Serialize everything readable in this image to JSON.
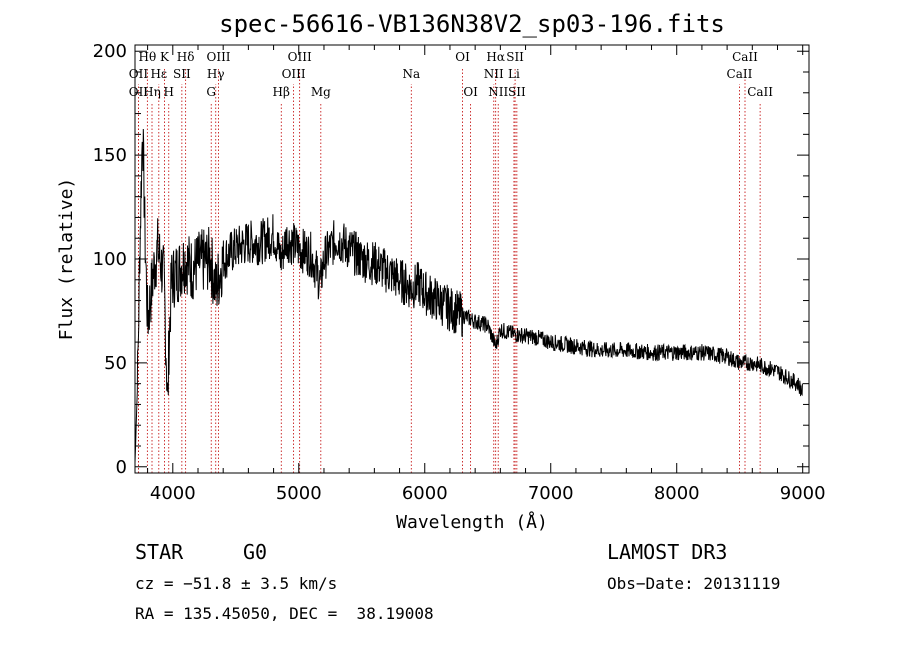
{
  "chart_data": {
    "type": "line",
    "title": "spec-56616-VB136N38V2_sp03-196.fits",
    "xlabel": "Wavelength (Å)",
    "ylabel": "Flux (relative)",
    "xlim": [
      3700,
      9050
    ],
    "ylim": [
      -3,
      203
    ],
    "xticks": [
      4000,
      5000,
      6000,
      7000,
      8000,
      9000
    ],
    "yticks": [
      0,
      50,
      100,
      150,
      200
    ],
    "series": [
      {
        "name": "flux",
        "anchors": [
          [
            3700,
            2
          ],
          [
            3720,
            40
          ],
          [
            3740,
            110
          ],
          [
            3760,
            165
          ],
          [
            3780,
            110
          ],
          [
            3800,
            70
          ],
          [
            3820,
            80
          ],
          [
            3850,
            95
          ],
          [
            3880,
            105
          ],
          [
            3900,
            100
          ],
          [
            3930,
            90
          ],
          [
            3960,
            30
          ],
          [
            3970,
            60
          ],
          [
            3990,
            90
          ],
          [
            4050,
            95
          ],
          [
            4100,
            100
          ],
          [
            4150,
            95
          ],
          [
            4200,
            98
          ],
          [
            4300,
            100
          ],
          [
            4340,
            85
          ],
          [
            4400,
            100
          ],
          [
            4500,
            105
          ],
          [
            4600,
            108
          ],
          [
            4700,
            108
          ],
          [
            4800,
            112
          ],
          [
            4861,
            100
          ],
          [
            4900,
            110
          ],
          [
            5000,
            105
          ],
          [
            5100,
            102
          ],
          [
            5172,
            88
          ],
          [
            5200,
            100
          ],
          [
            5300,
            110
          ],
          [
            5400,
            105
          ],
          [
            5500,
            100
          ],
          [
            5600,
            98
          ],
          [
            5700,
            94
          ],
          [
            5800,
            90
          ],
          [
            5893,
            86
          ],
          [
            5950,
            88
          ],
          [
            6000,
            84
          ],
          [
            6100,
            80
          ],
          [
            6200,
            76
          ],
          [
            6300,
            73
          ],
          [
            6400,
            70
          ],
          [
            6500,
            68
          ],
          [
            6563,
            58
          ],
          [
            6600,
            66
          ],
          [
            6700,
            64
          ],
          [
            6800,
            63
          ],
          [
            6900,
            62
          ],
          [
            7000,
            60
          ],
          [
            7200,
            58
          ],
          [
            7400,
            56
          ],
          [
            7600,
            56
          ],
          [
            7800,
            55
          ],
          [
            8000,
            55
          ],
          [
            8200,
            55
          ],
          [
            8400,
            53
          ],
          [
            8500,
            50
          ],
          [
            8600,
            50
          ],
          [
            8700,
            48
          ],
          [
            8800,
            46
          ],
          [
            8900,
            42
          ],
          [
            8960,
            40
          ],
          [
            9000,
            36
          ]
        ]
      }
    ],
    "lines": [
      {
        "label": "Hθ",
        "x": 3798,
        "row": 1
      },
      {
        "label": "OII",
        "x": 3727,
        "row": 2
      },
      {
        "label": "OII",
        "x": 3727,
        "row": 3
      },
      {
        "label": "K",
        "x": 3934,
        "row": 1
      },
      {
        "label": "Hε",
        "x": 3889,
        "row": 2
      },
      {
        "label": "Hη",
        "x": 3835,
        "row": 3
      },
      {
        "label": "H",
        "x": 3968,
        "row": 3
      },
      {
        "label": "Hδ",
        "x": 4102,
        "row": 1
      },
      {
        "label": "SII",
        "x": 4072,
        "row": 2
      },
      {
        "label": "OIII",
        "x": 4363,
        "row": 1
      },
      {
        "label": "Hγ",
        "x": 4341,
        "row": 2
      },
      {
        "label": "G",
        "x": 4305,
        "row": 3
      },
      {
        "label": "OIII",
        "x": 5007,
        "row": 1
      },
      {
        "label": "OIII",
        "x": 4959,
        "row": 2
      },
      {
        "label": "Hβ",
        "x": 4861,
        "row": 3
      },
      {
        "label": "Mg",
        "x": 5175,
        "row": 3
      },
      {
        "label": "Na",
        "x": 5893,
        "row": 2
      },
      {
        "label": "OI",
        "x": 6300,
        "row": 1
      },
      {
        "label": "OI",
        "x": 6364,
        "row": 3
      },
      {
        "label": "Hα",
        "x": 6563,
        "row": 1
      },
      {
        "label": "SII",
        "x": 6717,
        "row": 1
      },
      {
        "label": "NII",
        "x": 6548,
        "row": 2
      },
      {
        "label": "Li",
        "x": 6708,
        "row": 2
      },
      {
        "label": "NII",
        "x": 6583,
        "row": 3
      },
      {
        "label": "SII",
        "x": 6731,
        "row": 3
      },
      {
        "label": "CaII",
        "x": 8542,
        "row": 1
      },
      {
        "label": "CaII",
        "x": 8498,
        "row": 2
      },
      {
        "label": "CaII",
        "x": 8662,
        "row": 3
      }
    ]
  },
  "info": {
    "object_class": "STAR",
    "subclass": "G0",
    "survey": "LAMOST DR3",
    "redshift_text": "cz = −51.8 ± 3.5 km/s",
    "obs_date": "Obs−Date: 20131119",
    "coords": "RA = 135.45050, DEC =  38.19008"
  },
  "colors": {
    "axes": "#000000",
    "spectrum": "#000000",
    "line_markers": "#c00000"
  }
}
